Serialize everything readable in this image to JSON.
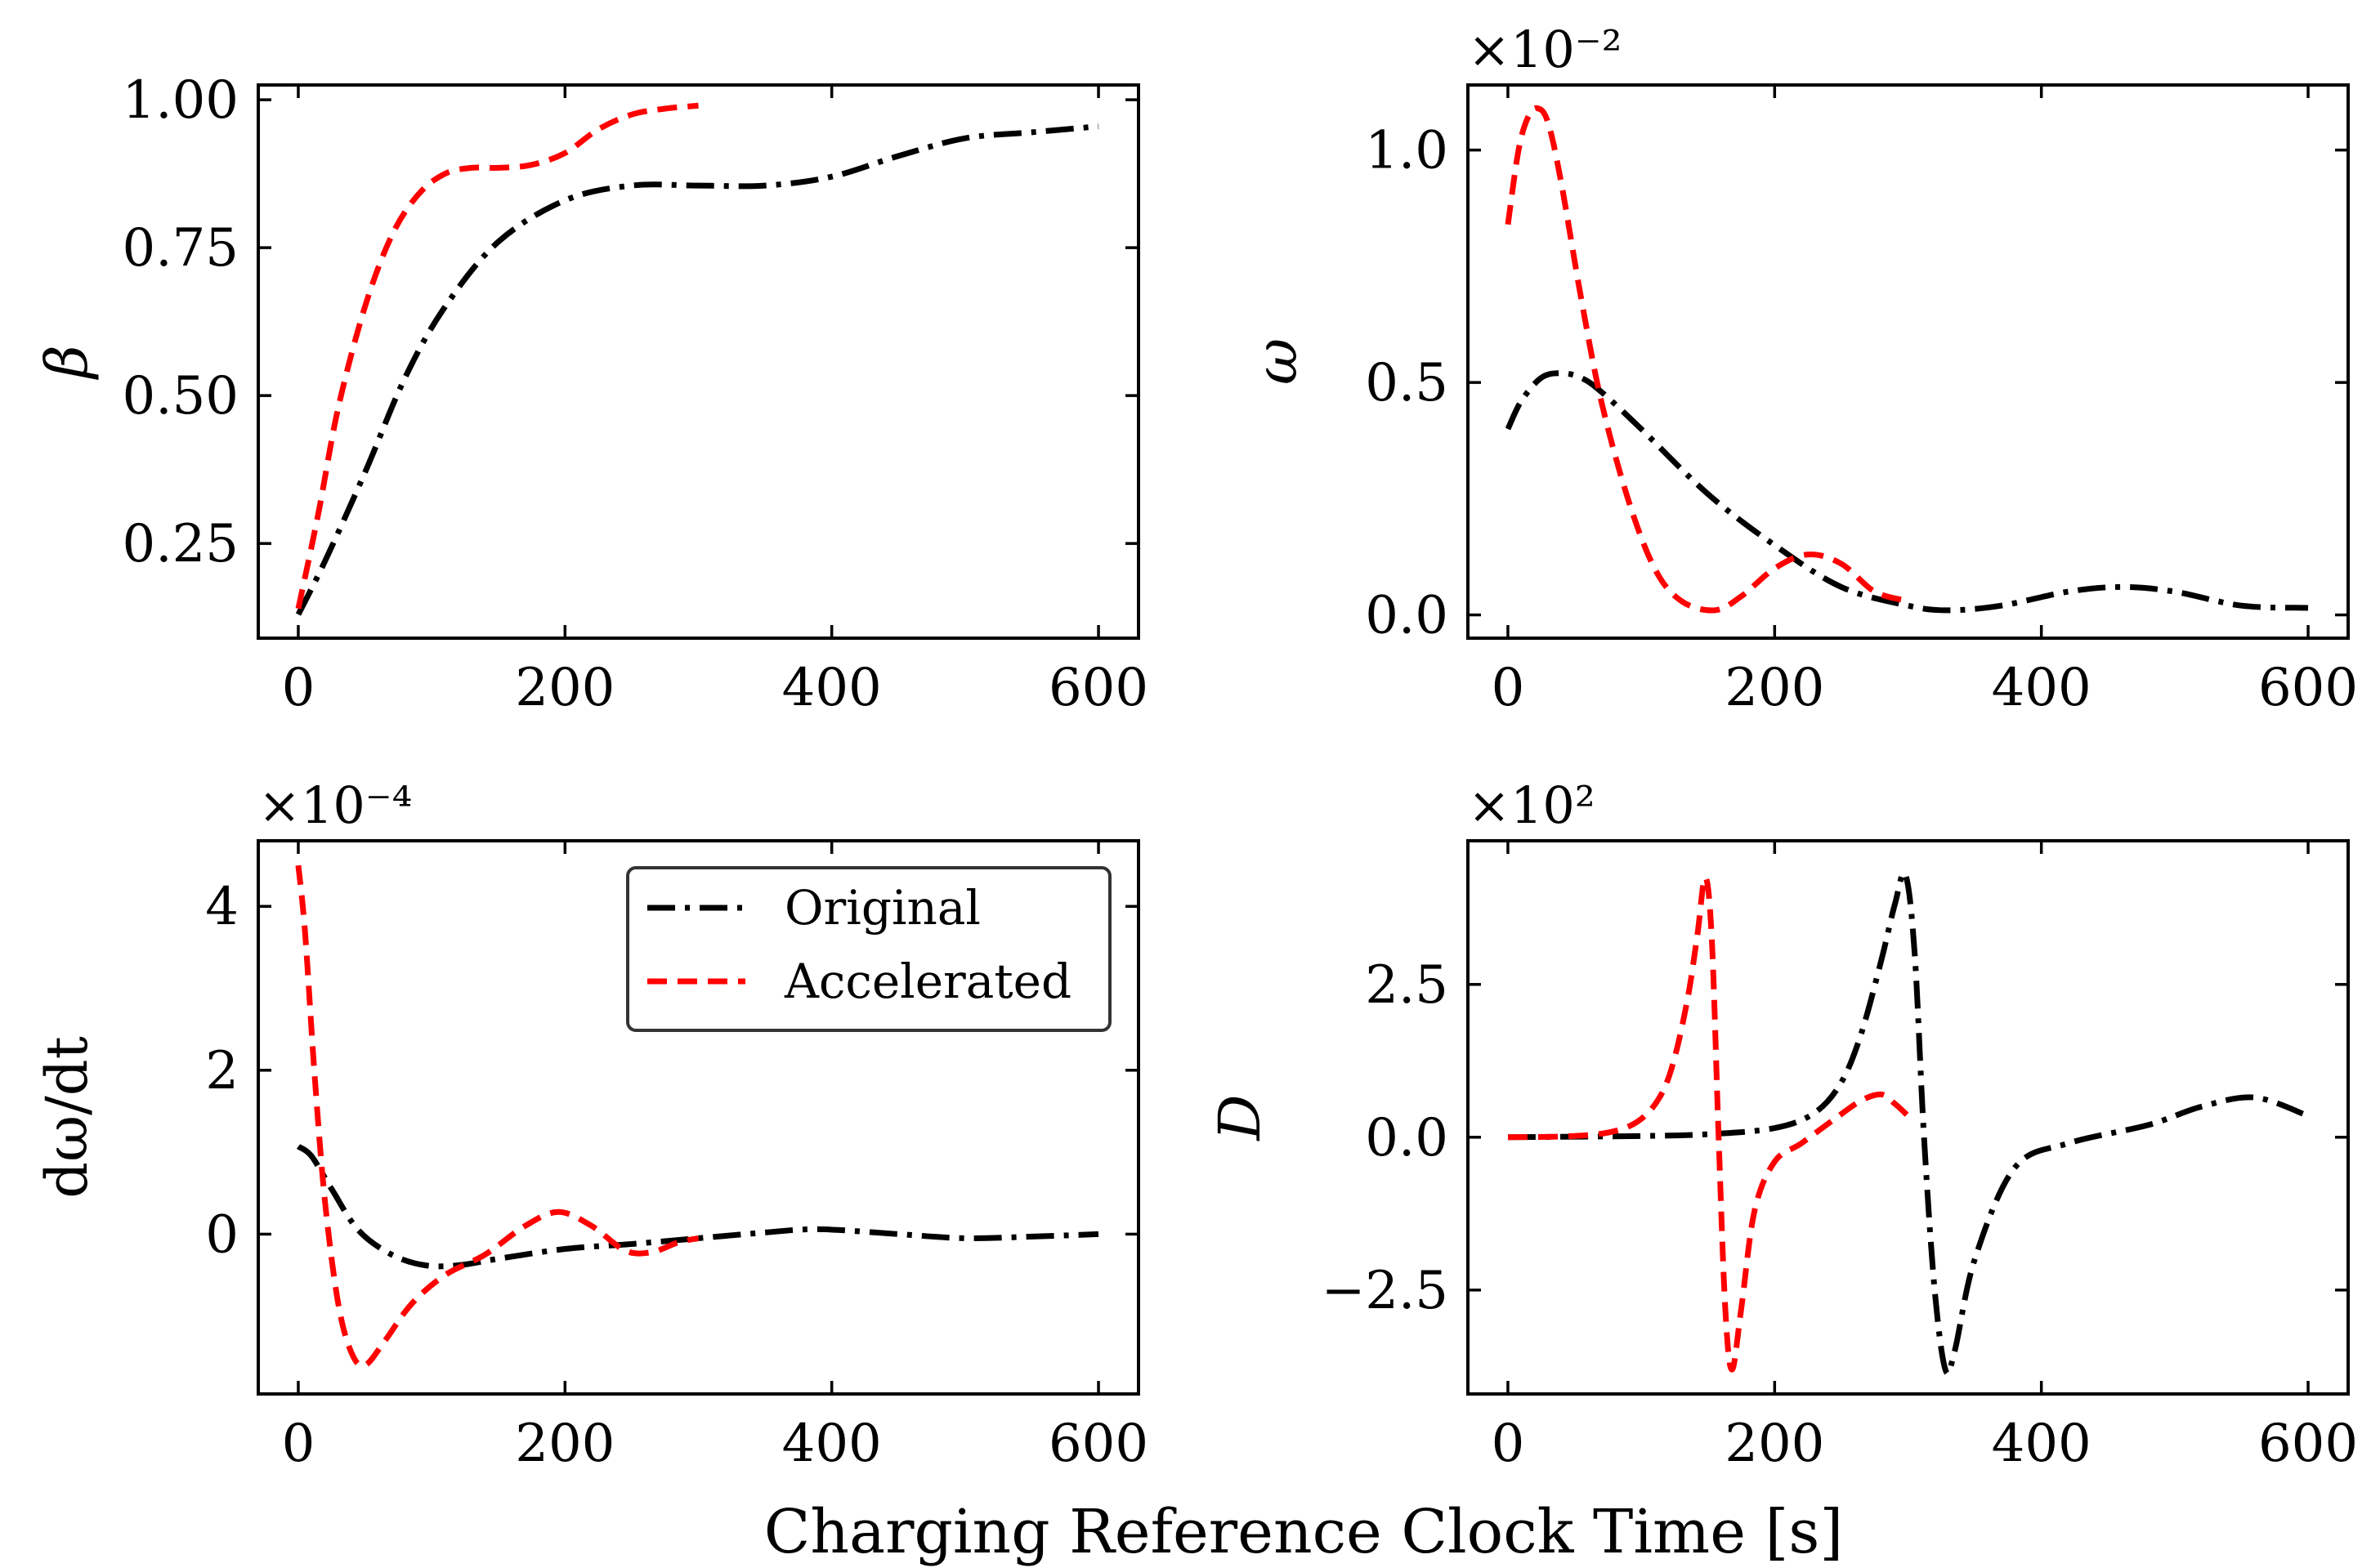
{
  "figure": {
    "xlabel": "Charging Reference Clock Time [s]"
  },
  "legend": {
    "entries": [
      {
        "label": "Original",
        "color": "#000000",
        "style": "dashdot"
      },
      {
        "label": "Accelerated",
        "color": "#ff0000",
        "style": "dashed"
      }
    ]
  },
  "chart_data": [
    {
      "type": "line",
      "ylabel": "β",
      "multiplier": "",
      "xlim": [
        -30,
        630
      ],
      "ylim": [
        0.09,
        1.025
      ],
      "xticks": [
        0,
        200,
        400,
        600
      ],
      "xtick_labels": [
        "0",
        "200",
        "400",
        "600"
      ],
      "yticks": [
        0.25,
        0.5,
        0.75,
        1.0
      ],
      "ytick_labels": [
        "0.25",
        "0.50",
        "0.75",
        "1.00"
      ],
      "series": [
        {
          "name": "Original",
          "color": "#000000",
          "style": "dashdot",
          "x": [
            0,
            20,
            50,
            80,
            110,
            150,
            200,
            250,
            300,
            350,
            400,
            450,
            500,
            550,
            600
          ],
          "y": [
            0.13,
            0.22,
            0.37,
            0.53,
            0.65,
            0.76,
            0.83,
            0.855,
            0.855,
            0.855,
            0.87,
            0.905,
            0.935,
            0.945,
            0.955
          ]
        },
        {
          "name": "Accelerated",
          "color": "#ff0000",
          "style": "dashed",
          "x": [
            0,
            15,
            30,
            50,
            70,
            90,
            110,
            130,
            150,
            175,
            200,
            225,
            250,
            275,
            300
          ],
          "y": [
            0.14,
            0.3,
            0.48,
            0.65,
            0.77,
            0.84,
            0.875,
            0.885,
            0.885,
            0.89,
            0.91,
            0.95,
            0.975,
            0.985,
            0.99
          ]
        }
      ]
    },
    {
      "type": "line",
      "ylabel": "ω",
      "multiplier": "×10⁻²",
      "xlim": [
        -30,
        630
      ],
      "ylim": [
        -0.05,
        1.14
      ],
      "xticks": [
        0,
        200,
        400,
        600
      ],
      "xtick_labels": [
        "0",
        "200",
        "400",
        "600"
      ],
      "yticks": [
        0.0,
        0.5,
        1.0
      ],
      "ytick_labels": [
        "0.0",
        "0.5",
        "1.0"
      ],
      "series": [
        {
          "name": "Original",
          "color": "#000000",
          "style": "dashdot",
          "x": [
            0,
            10,
            25,
            40,
            55,
            70,
            100,
            150,
            200,
            250,
            300,
            330,
            370,
            420,
            460,
            500,
            550,
            600
          ],
          "y": [
            0.4,
            0.46,
            0.51,
            0.52,
            0.51,
            0.48,
            0.4,
            0.26,
            0.15,
            0.06,
            0.02,
            0.01,
            0.02,
            0.05,
            0.06,
            0.05,
            0.02,
            0.015
          ]
        },
        {
          "name": "Accelerated",
          "color": "#ff0000",
          "style": "dashed",
          "x": [
            0,
            8,
            15,
            22,
            30,
            40,
            55,
            70,
            90,
            110,
            130,
            155,
            175,
            200,
            225,
            250,
            275,
            300
          ],
          "y": [
            0.84,
            1.0,
            1.07,
            1.09,
            1.06,
            0.93,
            0.68,
            0.46,
            0.25,
            0.1,
            0.03,
            0.01,
            0.04,
            0.1,
            0.13,
            0.11,
            0.05,
            0.03
          ]
        }
      ]
    },
    {
      "type": "line",
      "ylabel": "dω/dt",
      "multiplier": "×10⁻⁴",
      "xlim": [
        -30,
        630
      ],
      "ylim": [
        -1.95,
        4.8
      ],
      "xticks": [
        0,
        200,
        400,
        600
      ],
      "xtick_labels": [
        "0",
        "200",
        "400",
        "600"
      ],
      "yticks": [
        0,
        2,
        4
      ],
      "ytick_labels": [
        "0",
        "2",
        "4"
      ],
      "series": [
        {
          "name": "Original",
          "color": "#000000",
          "style": "dashdot",
          "x": [
            0,
            10,
            25,
            45,
            70,
            95,
            120,
            150,
            200,
            250,
            300,
            350,
            390,
            450,
            500,
            550,
            600
          ],
          "y": [
            1.07,
            0.95,
            0.55,
            0.05,
            -0.25,
            -0.38,
            -0.38,
            -0.3,
            -0.18,
            -0.12,
            -0.05,
            0.02,
            0.06,
            0.0,
            -0.05,
            -0.03,
            0.0
          ]
        },
        {
          "name": "Accelerated",
          "color": "#ff0000",
          "style": "dashed",
          "x": [
            0,
            5,
            12,
            20,
            30,
            40,
            50,
            65,
            85,
            110,
            140,
            170,
            195,
            220,
            245,
            265,
            285,
            300
          ],
          "y": [
            4.5,
            3.7,
            2.0,
            0.4,
            -0.85,
            -1.45,
            -1.6,
            -1.3,
            -0.85,
            -0.5,
            -0.25,
            0.1,
            0.27,
            0.1,
            -0.2,
            -0.22,
            -0.1,
            -0.05
          ]
        }
      ]
    },
    {
      "type": "line",
      "ylabel": "D",
      "multiplier": "×10²",
      "xlim": [
        -30,
        630
      ],
      "ylim": [
        -4.2,
        4.85
      ],
      "xticks": [
        0,
        200,
        400,
        600
      ],
      "xtick_labels": [
        "0",
        "200",
        "400",
        "600"
      ],
      "yticks": [
        -2.5,
        0.0,
        2.5
      ],
      "ytick_labels": [
        "−2.5",
        "0.0",
        "2.5"
      ],
      "series": [
        {
          "name": "Original",
          "color": "#000000",
          "style": "dashdot",
          "x": [
            0,
            100,
            150,
            200,
            230,
            250,
            265,
            280,
            290,
            298,
            305,
            312,
            320,
            328,
            335,
            350,
            380,
            420,
            480,
            520,
            560,
            600
          ],
          "y": [
            0.0,
            0.02,
            0.05,
            0.15,
            0.4,
            0.9,
            1.7,
            2.9,
            3.8,
            4.3,
            3.0,
            0.0,
            -2.5,
            -3.8,
            -3.5,
            -2.0,
            -0.5,
            -0.1,
            0.2,
            0.5,
            0.65,
            0.35
          ]
        },
        {
          "name": "Accelerated",
          "color": "#ff0000",
          "style": "dashed",
          "x": [
            0,
            50,
            80,
            100,
            115,
            125,
            135,
            142,
            148,
            153,
            158,
            163,
            168,
            175,
            185,
            200,
            220,
            245,
            265,
            280,
            290,
            300
          ],
          "y": [
            0.0,
            0.02,
            0.1,
            0.3,
            0.7,
            1.3,
            2.3,
            3.3,
            4.25,
            3.2,
            0.0,
            -2.8,
            -3.8,
            -2.8,
            -1.2,
            -0.4,
            -0.1,
            0.3,
            0.6,
            0.7,
            0.55,
            0.35
          ]
        }
      ]
    }
  ]
}
